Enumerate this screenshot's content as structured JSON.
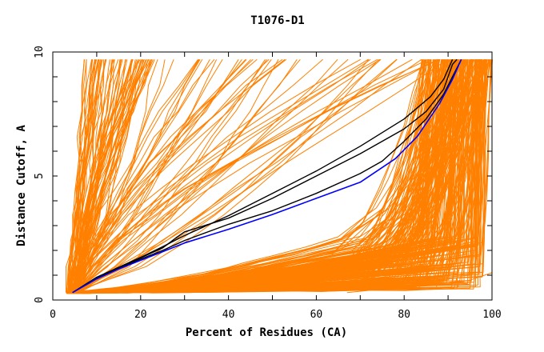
{
  "chart_data": {
    "type": "line",
    "title": "T1076-D1",
    "xlabel": "Percent of Residues (CA)",
    "ylabel": "Distance Cutoff, A",
    "xlim": [
      0,
      100
    ],
    "ylim": [
      0,
      10
    ],
    "x_ticks": [
      0,
      20,
      40,
      60,
      80,
      100
    ],
    "y_ticks": [
      0,
      5,
      10
    ],
    "colors": {
      "other": "#ff8000",
      "highlight": "#000000",
      "reference": "#0000ff",
      "frame": "#000000"
    },
    "series": [
      {
        "name": "reference",
        "color": "#0000ff",
        "points": [
          [
            4.5,
            0.3
          ],
          [
            10,
            0.85
          ],
          [
            15,
            1.25
          ],
          [
            20,
            1.6
          ],
          [
            25,
            1.95
          ],
          [
            30,
            2.3
          ],
          [
            40,
            2.85
          ],
          [
            50,
            3.45
          ],
          [
            60,
            4.1
          ],
          [
            70,
            4.75
          ],
          [
            78,
            5.7
          ],
          [
            83,
            6.6
          ],
          [
            88,
            7.9
          ],
          [
            91,
            8.9
          ],
          [
            93,
            9.7
          ]
        ]
      },
      {
        "name": "highlight-1",
        "color": "#000000",
        "points": [
          [
            4.5,
            0.3
          ],
          [
            10,
            0.9
          ],
          [
            15,
            1.3
          ],
          [
            20,
            1.7
          ],
          [
            25,
            2.1
          ],
          [
            28,
            2.5
          ],
          [
            30,
            2.75
          ],
          [
            40,
            3.3
          ],
          [
            50,
            4.1
          ],
          [
            60,
            5.0
          ],
          [
            70,
            5.9
          ],
          [
            80,
            6.9
          ],
          [
            85,
            7.6
          ],
          [
            89,
            8.5
          ],
          [
            91,
            9.5
          ],
          [
            92,
            9.7
          ]
        ]
      },
      {
        "name": "highlight-2",
        "color": "#000000",
        "points": [
          [
            4.5,
            0.3
          ],
          [
            10,
            0.9
          ],
          [
            15,
            1.28
          ],
          [
            20,
            1.65
          ],
          [
            25,
            2.0
          ],
          [
            30,
            2.4
          ],
          [
            40,
            3.05
          ],
          [
            50,
            3.6
          ],
          [
            60,
            4.3
          ],
          [
            70,
            5.1
          ],
          [
            75,
            5.6
          ],
          [
            80,
            6.4
          ],
          [
            85,
            7.3
          ],
          [
            89,
            8.3
          ],
          [
            91,
            9.0
          ],
          [
            93,
            9.7
          ]
        ]
      },
      {
        "name": "highlight-3",
        "color": "#000000",
        "points": [
          [
            4.5,
            0.3
          ],
          [
            10,
            0.92
          ],
          [
            15,
            1.32
          ],
          [
            20,
            1.72
          ],
          [
            25,
            2.15
          ],
          [
            30,
            2.6
          ],
          [
            40,
            3.4
          ],
          [
            50,
            4.3
          ],
          [
            60,
            5.2
          ],
          [
            70,
            6.2
          ],
          [
            80,
            7.3
          ],
          [
            86,
            8.2
          ],
          [
            89,
            8.9
          ],
          [
            91,
            9.7
          ]
        ]
      }
    ],
    "bands": [
      {
        "name": "orange-fan-steep",
        "color": "#ff8000",
        "count": 70,
        "x_start_range": [
          3,
          6
        ],
        "x_end_range": [
          7,
          24
        ],
        "y_start": 0.3,
        "y_end": 9.7
      },
      {
        "name": "orange-fan-diagonal",
        "color": "#ff8000",
        "count": 50,
        "x_start_range": [
          4,
          6
        ],
        "x_end_range": [
          18,
          90
        ],
        "y_start": 0.3,
        "y_end": 9.7
      },
      {
        "name": "orange-bottom-mass",
        "color": "#ff8000",
        "count": 260,
        "x_start_range": [
          3,
          8
        ],
        "x_knee_range": [
          60,
          98
        ],
        "y_knee_range": [
          0.4,
          2.6
        ],
        "x_top_range": [
          84,
          100
        ],
        "y_end": 9.7
      },
      {
        "name": "orange-bottom-outlier",
        "color": "#ff8000",
        "count": 1,
        "points": [
          [
            67,
            0.3
          ],
          [
            95,
            0.8
          ],
          [
            100,
            1.1
          ]
        ]
      }
    ]
  }
}
